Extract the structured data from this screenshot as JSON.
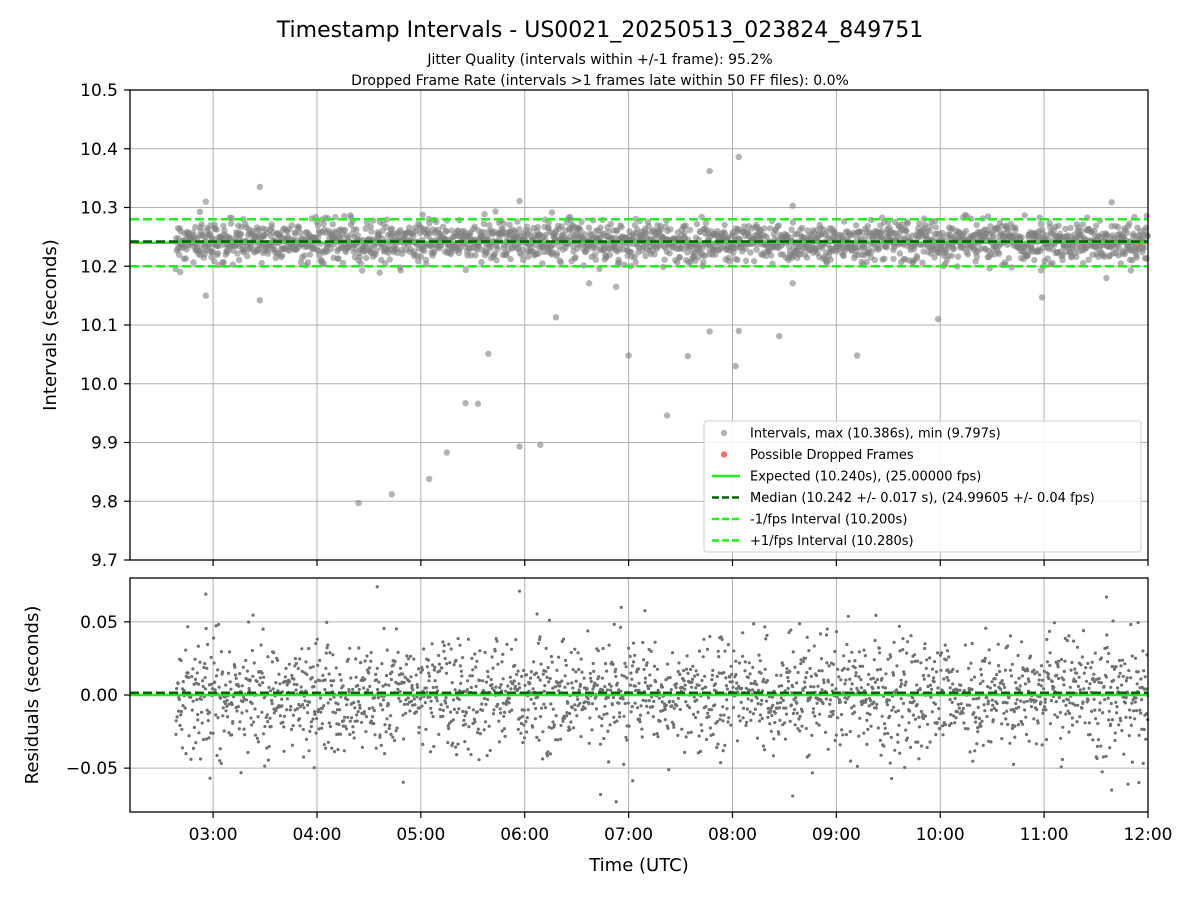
{
  "title": "Timestamp Intervals - US0021_20250513_023824_849751",
  "subtitle_1": "Jitter Quality (intervals within +/-1 frame): 95.2%",
  "subtitle_2": "Dropped Frame Rate (intervals >1 frames late within 50 FF files): 0.0%",
  "chart_data": [
    {
      "type": "scatter",
      "panel": "intervals",
      "ylabel": "Intervals (seconds)",
      "xlim_hours": [
        2.2,
        12.0
      ],
      "ylim": [
        9.7,
        10.5
      ],
      "yticks": [
        9.7,
        9.8,
        9.9,
        10.0,
        10.1,
        10.2,
        10.3,
        10.4,
        10.5
      ],
      "ytick_labels": [
        "9.7",
        "9.8",
        "9.9",
        "10.0",
        "10.1",
        "10.2",
        "10.3",
        "10.4",
        "10.5"
      ],
      "xticks_hours": [
        3,
        4,
        5,
        6,
        7,
        8,
        9,
        10,
        11,
        12
      ],
      "grid": true,
      "legend_position": "lower-right",
      "series": [
        {
          "name": "Intervals, max (10.386s), min (9.797s)",
          "color": "#808080",
          "marker": "circle",
          "dense_band": {
            "x_range_hours": [
              2.64,
              12.0
            ],
            "center": 10.242,
            "std": 0.017
          },
          "outliers": [
            {
              "x": 2.93,
              "y": 10.15
            },
            {
              "x": 3.45,
              "y": 10.142
            },
            {
              "x": 3.45,
              "y": 10.335
            },
            {
              "x": 2.93,
              "y": 10.31
            },
            {
              "x": 4.4,
              "y": 9.797
            },
            {
              "x": 4.72,
              "y": 9.812
            },
            {
              "x": 5.08,
              "y": 9.838
            },
            {
              "x": 5.25,
              "y": 9.883
            },
            {
              "x": 5.43,
              "y": 9.967
            },
            {
              "x": 5.55,
              "y": 9.966
            },
            {
              "x": 5.65,
              "y": 10.051
            },
            {
              "x": 5.95,
              "y": 9.893
            },
            {
              "x": 6.15,
              "y": 9.896
            },
            {
              "x": 6.3,
              "y": 10.113
            },
            {
              "x": 5.95,
              "y": 10.311
            },
            {
              "x": 6.62,
              "y": 10.171
            },
            {
              "x": 6.88,
              "y": 10.165
            },
            {
              "x": 7.0,
              "y": 10.048
            },
            {
              "x": 7.37,
              "y": 9.946
            },
            {
              "x": 7.57,
              "y": 10.047
            },
            {
              "x": 7.78,
              "y": 10.089
            },
            {
              "x": 7.78,
              "y": 10.362
            },
            {
              "x": 8.03,
              "y": 10.03
            },
            {
              "x": 8.06,
              "y": 10.09
            },
            {
              "x": 8.06,
              "y": 10.386
            },
            {
              "x": 8.45,
              "y": 10.081
            },
            {
              "x": 8.58,
              "y": 10.171
            },
            {
              "x": 8.58,
              "y": 10.303
            },
            {
              "x": 9.2,
              "y": 10.048
            },
            {
              "x": 9.98,
              "y": 10.11
            },
            {
              "x": 10.98,
              "y": 10.147
            },
            {
              "x": 11.6,
              "y": 10.18
            },
            {
              "x": 11.65,
              "y": 10.309
            }
          ]
        },
        {
          "name": "Possible Dropped Frames",
          "color": "#ff6b6b",
          "marker": "circle",
          "points": []
        },
        {
          "name": "Expected (10.240s), (25.00000 fps)",
          "color": "#22ee22",
          "line": "solid",
          "y": 10.24
        },
        {
          "name": "Median (10.242 +/- 0.017 s), (24.99605 +/- 0.04 fps)",
          "color": "#006400",
          "line": "dashed",
          "y": 10.242
        },
        {
          "name": "-1/fps Interval (10.200s)",
          "color": "#22ee22",
          "line": "dashed",
          "y": 10.2
        },
        {
          "name": "+1/fps Interval (10.280s)",
          "color": "#22ee22",
          "line": "dashed",
          "y": 10.28
        }
      ]
    },
    {
      "type": "scatter",
      "panel": "residuals",
      "ylabel": "Residuals (seconds)",
      "xlabel": "Time (UTC)",
      "xlim_hours": [
        2.2,
        12.0
      ],
      "ylim": [
        -0.08,
        0.08
      ],
      "yticks": [
        -0.05,
        0.0,
        0.05
      ],
      "ytick_labels": [
        "−0.05",
        "0.00",
        "0.05"
      ],
      "xticks_hours": [
        3,
        4,
        5,
        6,
        7,
        8,
        9,
        10,
        11,
        12
      ],
      "xtick_labels": [
        "03:00",
        "04:00",
        "05:00",
        "06:00",
        "07:00",
        "08:00",
        "09:00",
        "10:00",
        "11:00",
        "12:00"
      ],
      "grid": true,
      "series": [
        {
          "name": "residuals",
          "color": "#707070",
          "dense_band": {
            "x_range_hours": [
              2.64,
              12.0
            ],
            "center": 0.0,
            "std": 0.019
          },
          "outliers": [
            {
              "x": 2.93,
              "y": 0.069
            },
            {
              "x": 4.58,
              "y": 0.074
            },
            {
              "x": 5.95,
              "y": 0.071
            },
            {
              "x": 6.73,
              "y": -0.068
            },
            {
              "x": 6.88,
              "y": -0.073
            },
            {
              "x": 8.58,
              "y": -0.069
            },
            {
              "x": 11.65,
              "y": -0.065
            },
            {
              "x": 11.6,
              "y": 0.067
            }
          ]
        },
        {
          "name": "zero",
          "color": "#22ee22",
          "line": "solid",
          "y": 0.0
        },
        {
          "name": "median offset",
          "color": "#006400",
          "line": "dashed",
          "y": 0.0015
        }
      ]
    }
  ]
}
